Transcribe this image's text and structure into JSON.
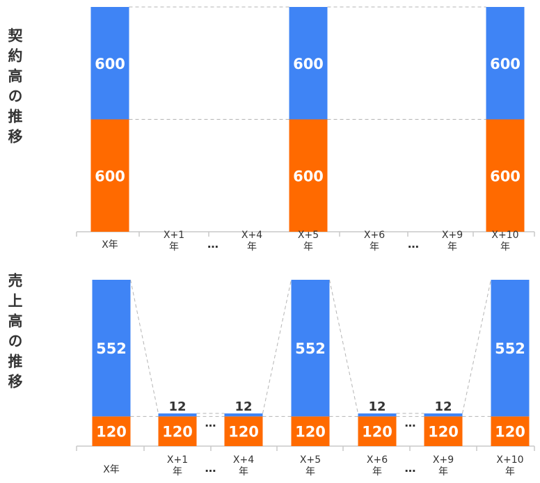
{
  "colors": {
    "blue": "#3f84f5",
    "orange": "#ff6a00",
    "axis": "#c8c8c8",
    "connector": "#b4b4b4",
    "text_dark": "#333333",
    "text_white": "#ffffff"
  },
  "ellipsis": "…",
  "chart_data": [
    {
      "type": "bar",
      "stacked": true,
      "title": "契約高の推移",
      "categories": [
        "X年",
        "X+1\n年",
        "X+4\n年",
        "X+5\n年",
        "X+6\n年",
        "X+9\n年",
        "X+10\n年"
      ],
      "series": [
        {
          "color": "orange",
          "values": [
            600,
            0,
            0,
            600,
            0,
            0,
            600
          ]
        },
        {
          "color": "blue",
          "values": [
            600,
            0,
            0,
            600,
            0,
            0,
            600
          ]
        }
      ],
      "ylim": [
        0,
        1200
      ],
      "ellipsis_after": [
        1,
        4
      ]
    },
    {
      "type": "bar",
      "stacked": true,
      "title": "売上高の推移",
      "categories": [
        "X年",
        "X+1\n年",
        "X+4\n年",
        "X+5\n年",
        "X+6\n年",
        "X+9\n年",
        "X+10\n年"
      ],
      "series": [
        {
          "color": "orange",
          "values": [
            120,
            120,
            120,
            120,
            120,
            120,
            120
          ]
        },
        {
          "color": "blue",
          "values": [
            552,
            12,
            12,
            552,
            12,
            12,
            552
          ]
        }
      ],
      "ylim": [
        0,
        672
      ],
      "ellipsis_after": [
        1,
        4
      ]
    }
  ]
}
